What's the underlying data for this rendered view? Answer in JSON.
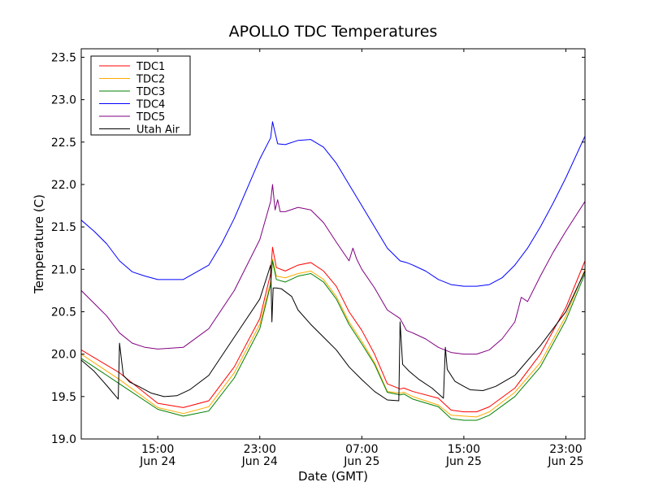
{
  "chart_data": {
    "type": "line",
    "title": "APOLLO TDC Temperatures",
    "xlabel": "Date (GMT)",
    "ylabel": "Temperature (C)",
    "x_unit": "hours since Jun 24 09:00 GMT",
    "xlim": [
      0,
      39.5
    ],
    "ylim": [
      19.0,
      23.6
    ],
    "yticks": [
      "19.0",
      "19.5",
      "20.0",
      "20.5",
      "21.0",
      "21.5",
      "22.0",
      "22.5",
      "23.0",
      "23.5"
    ],
    "ytick_values": [
      19.0,
      19.5,
      20.0,
      20.5,
      21.0,
      21.5,
      22.0,
      22.5,
      23.0,
      23.5
    ],
    "xticks": [
      {
        "x": 6,
        "time": "15:00",
        "date": "Jun 24"
      },
      {
        "x": 14,
        "time": "23:00",
        "date": "Jun 24"
      },
      {
        "x": 22,
        "time": "07:00",
        "date": "Jun 25"
      },
      {
        "x": 30,
        "time": "15:00",
        "date": "Jun 25"
      },
      {
        "x": 38,
        "time": "23:00",
        "date": "Jun 25"
      }
    ],
    "grid": false,
    "legend_position": "top-left",
    "series": [
      {
        "name": "TDC1",
        "color": "#ff0000",
        "x": [
          0,
          3,
          6,
          8,
          10,
          12,
          14,
          14.85,
          15.0,
          15.3,
          16,
          17,
          18,
          19,
          20,
          21,
          22,
          23,
          24,
          25,
          25.3,
          26,
          28,
          29,
          30,
          31,
          32,
          34,
          36,
          38,
          39.5
        ],
        "y": [
          20.05,
          19.78,
          19.42,
          19.37,
          19.45,
          19.85,
          20.42,
          20.95,
          21.26,
          21.02,
          20.98,
          21.05,
          21.08,
          20.98,
          20.8,
          20.5,
          20.28,
          20.0,
          19.65,
          19.59,
          19.6,
          19.56,
          19.48,
          19.34,
          19.32,
          19.32,
          19.38,
          19.6,
          20.0,
          20.55,
          21.1
        ]
      },
      {
        "name": "TDC2",
        "color": "#ffaa00",
        "x": [
          0,
          3,
          6,
          8,
          10,
          12,
          14,
          14.85,
          15.0,
          15.3,
          16,
          17,
          18,
          19,
          20,
          21,
          22,
          23,
          24,
          25,
          25.3,
          26,
          28,
          29,
          30,
          31,
          32,
          34,
          36,
          38,
          39.5
        ],
        "y": [
          20.0,
          19.7,
          19.37,
          19.3,
          19.38,
          19.78,
          20.35,
          20.85,
          21.12,
          20.92,
          20.9,
          20.95,
          20.98,
          20.88,
          20.68,
          20.38,
          20.15,
          19.9,
          19.56,
          19.54,
          19.55,
          19.5,
          19.4,
          19.28,
          19.27,
          19.26,
          19.32,
          19.55,
          19.9,
          20.45,
          21.0
        ]
      },
      {
        "name": "TDC3",
        "color": "#008000",
        "x": [
          0,
          3,
          6,
          8,
          10,
          12,
          14,
          14.85,
          15.0,
          15.3,
          16,
          17,
          18,
          19,
          20,
          21,
          22,
          23,
          24,
          25,
          25.3,
          26,
          28,
          29,
          30,
          31,
          32,
          34,
          36,
          38,
          39.5
        ],
        "y": [
          19.95,
          19.65,
          19.35,
          19.27,
          19.33,
          19.72,
          20.3,
          20.82,
          21.1,
          20.88,
          20.85,
          20.92,
          20.95,
          20.85,
          20.65,
          20.35,
          20.12,
          19.88,
          19.55,
          19.52,
          19.53,
          19.47,
          19.38,
          19.24,
          19.22,
          19.22,
          19.28,
          19.5,
          19.85,
          20.4,
          20.95
        ]
      },
      {
        "name": "TDC4",
        "color": "#0000ff",
        "x": [
          0,
          1,
          2,
          3,
          4,
          5,
          6,
          8,
          10,
          11,
          12,
          13,
          14,
          14.85,
          15.0,
          15.4,
          16,
          17,
          18,
          19,
          20,
          21,
          22,
          23,
          24,
          25,
          25.5,
          26,
          27,
          28,
          29,
          30,
          31,
          32,
          33,
          34,
          35,
          36,
          37,
          38,
          39.5
        ],
        "y": [
          21.58,
          21.45,
          21.3,
          21.1,
          20.97,
          20.92,
          20.88,
          20.88,
          21.05,
          21.3,
          21.6,
          21.95,
          22.3,
          22.55,
          22.74,
          22.48,
          22.47,
          22.52,
          22.53,
          22.44,
          22.25,
          22.0,
          21.75,
          21.5,
          21.25,
          21.1,
          21.08,
          21.05,
          20.98,
          20.88,
          20.82,
          20.8,
          20.8,
          20.82,
          20.9,
          21.05,
          21.25,
          21.5,
          21.78,
          22.08,
          22.57
        ]
      },
      {
        "name": "TDC5",
        "color": "#800080",
        "x": [
          0,
          1,
          2,
          3,
          4,
          5,
          6,
          8,
          10,
          12,
          14,
          14.85,
          15.0,
          15.2,
          15.4,
          15.6,
          16,
          17,
          18,
          19,
          20,
          21,
          21.3,
          21.6,
          22,
          23,
          24,
          25,
          25.5,
          26,
          27,
          28,
          29,
          30,
          31,
          32,
          33,
          34,
          34.3,
          34.5,
          35,
          36,
          37,
          38,
          39.5
        ],
        "y": [
          20.75,
          20.6,
          20.45,
          20.25,
          20.13,
          20.08,
          20.06,
          20.08,
          20.3,
          20.75,
          21.35,
          21.8,
          22.0,
          21.7,
          21.82,
          21.68,
          21.68,
          21.73,
          21.7,
          21.55,
          21.32,
          21.1,
          21.25,
          21.12,
          21.0,
          20.78,
          20.52,
          20.42,
          20.28,
          20.25,
          20.18,
          20.08,
          20.02,
          20.0,
          20.0,
          20.05,
          20.18,
          20.38,
          20.55,
          20.67,
          20.62,
          20.92,
          21.2,
          21.45,
          21.8
        ]
      },
      {
        "name": "Utah Air",
        "color": "#000000",
        "x": [
          0,
          1,
          2,
          2.9,
          3.0,
          3.3,
          3.8,
          4.5,
          5.5,
          6.5,
          7.5,
          8.5,
          10,
          12,
          14,
          14.85,
          14.95,
          15.05,
          15.3,
          15.7,
          16.5,
          17,
          18,
          19,
          20,
          21,
          22,
          23,
          24,
          24.9,
          25.0,
          25.2,
          25.7,
          26.5,
          27.5,
          28.4,
          28.55,
          28.7,
          29.3,
          30,
          30.5,
          31.5,
          32.5,
          34,
          36,
          38,
          39.5
        ],
        "y": [
          19.93,
          19.8,
          19.63,
          19.47,
          20.13,
          19.75,
          19.67,
          19.62,
          19.54,
          19.5,
          19.51,
          19.58,
          19.75,
          20.2,
          20.65,
          21.05,
          20.38,
          20.78,
          20.78,
          20.77,
          20.68,
          20.52,
          20.35,
          20.2,
          20.05,
          19.85,
          19.7,
          19.56,
          19.46,
          19.45,
          20.38,
          19.88,
          19.8,
          19.7,
          19.6,
          19.48,
          20.08,
          19.82,
          19.68,
          19.62,
          19.58,
          19.57,
          19.62,
          19.75,
          20.1,
          20.5,
          20.98
        ]
      }
    ]
  }
}
